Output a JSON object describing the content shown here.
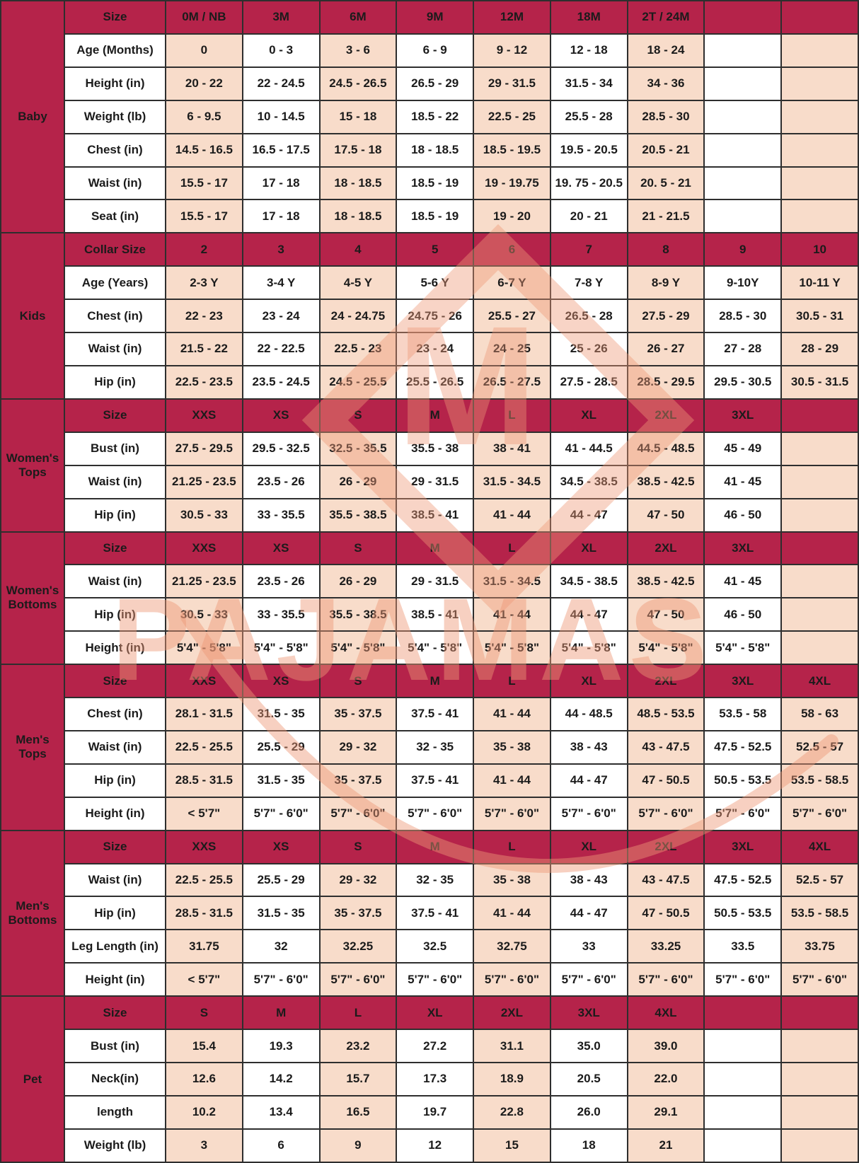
{
  "colors": {
    "header_bg": "#b5234a",
    "pink_cell": "#f8dcca",
    "white_cell": "#ffffff",
    "border": "#2e2e2e",
    "cell_text": "#1b1b1b",
    "header_text": "#f9edef",
    "watermark": "#ee9877"
  },
  "watermark": {
    "brand_text": "PAJAMAS",
    "monogram": "M"
  },
  "sections": [
    {
      "group": "Baby",
      "header_label": "Size",
      "columns": [
        "0M / NB",
        "3M",
        "6M",
        "9M",
        "12M",
        "18M",
        "2T / 24M",
        "",
        ""
      ],
      "rows": [
        {
          "label": "Age (Months)",
          "values": [
            "0",
            "0 - 3",
            "3 - 6",
            "6 - 9",
            "9 - 12",
            "12 - 18",
            "18 - 24",
            "",
            ""
          ]
        },
        {
          "label": "Height (in)",
          "values": [
            "20 - 22",
            "22 - 24.5",
            "24.5 - 26.5",
            "26.5 - 29",
            "29 - 31.5",
            "31.5 - 34",
            "34 - 36",
            "",
            ""
          ]
        },
        {
          "label": "Weight (lb)",
          "values": [
            "6 - 9.5",
            "10 - 14.5",
            "15 - 18",
            "18.5 - 22",
            "22.5 - 25",
            "25.5 - 28",
            "28.5 - 30",
            "",
            ""
          ]
        },
        {
          "label": "Chest (in)",
          "values": [
            "14.5 - 16.5",
            "16.5 - 17.5",
            "17.5 - 18",
            "18 - 18.5",
            "18.5 - 19.5",
            "19.5 - 20.5",
            "20.5 - 21",
            "",
            ""
          ]
        },
        {
          "label": "Waist (in)",
          "values": [
            "15.5 - 17",
            "17 - 18",
            "18 - 18.5",
            "18.5 - 19",
            "19 - 19.75",
            "19. 75 - 20.5",
            "20. 5 - 21",
            "",
            ""
          ]
        },
        {
          "label": "Seat (in)",
          "values": [
            "15.5 - 17",
            "17 - 18",
            "18 - 18.5",
            "18.5 - 19",
            "19 - 20",
            "20 - 21",
            "21 - 21.5",
            "",
            ""
          ]
        }
      ]
    },
    {
      "group": "Kids",
      "header_label": "Collar Size",
      "columns": [
        "2",
        "3",
        "4",
        "5",
        "6",
        "7",
        "8",
        "9",
        "10"
      ],
      "rows": [
        {
          "label": "Age (Years)",
          "values": [
            "2-3 Y",
            "3-4 Y",
            "4-5 Y",
            "5-6 Y",
            "6-7 Y",
            "7-8 Y",
            "8-9 Y",
            "9-10Y",
            "10-11 Y"
          ]
        },
        {
          "label": "Chest (in)",
          "values": [
            "22 - 23",
            "23 - 24",
            "24 - 24.75",
            "24.75 - 26",
            "25.5 - 27",
            "26.5 - 28",
            "27.5 - 29",
            "28.5 - 30",
            "30.5 - 31"
          ]
        },
        {
          "label": "Waist (in)",
          "values": [
            "21.5 - 22",
            "22 - 22.5",
            "22.5 - 23",
            "23 - 24",
            "24 - 25",
            "25 - 26",
            "26 - 27",
            "27 - 28",
            "28 - 29"
          ]
        },
        {
          "label": "Hip (in)",
          "values": [
            "22.5 - 23.5",
            "23.5 - 24.5",
            "24.5 - 25.5",
            "25.5 - 26.5",
            "26.5 - 27.5",
            "27.5 - 28.5",
            "28.5 - 29.5",
            "29.5 - 30.5",
            "30.5 - 31.5"
          ]
        }
      ]
    },
    {
      "group": "Women's Tops",
      "header_label": "Size",
      "columns": [
        "XXS",
        "XS",
        "S",
        "M",
        "L",
        "XL",
        "2XL",
        "3XL",
        ""
      ],
      "rows": [
        {
          "label": "Bust (in)",
          "values": [
            "27.5 - 29.5",
            "29.5 - 32.5",
            "32.5 - 35.5",
            "35.5 - 38",
            "38 - 41",
            "41 - 44.5",
            "44.5 - 48.5",
            "45 - 49",
            ""
          ]
        },
        {
          "label": "Waist (in)",
          "values": [
            "21.25 - 23.5",
            "23.5 - 26",
            "26 - 29",
            "29 - 31.5",
            "31.5 - 34.5",
            "34.5 - 38.5",
            "38.5 - 42.5",
            "41 - 45",
            ""
          ]
        },
        {
          "label": "Hip (in)",
          "values": [
            "30.5 - 33",
            "33 - 35.5",
            "35.5 - 38.5",
            "38.5 - 41",
            "41 - 44",
            "44 - 47",
            "47 - 50",
            "46 - 50",
            ""
          ]
        }
      ]
    },
    {
      "group": "Women's Bottoms",
      "header_label": "Size",
      "columns": [
        "XXS",
        "XS",
        "S",
        "M",
        "L",
        "XL",
        "2XL",
        "3XL",
        ""
      ],
      "rows": [
        {
          "label": "Waist (in)",
          "values": [
            "21.25 - 23.5",
            "23.5 - 26",
            "26 - 29",
            "29 - 31.5",
            "31.5 - 34.5",
            "34.5 - 38.5",
            "38.5 - 42.5",
            "41 - 45",
            ""
          ]
        },
        {
          "label": "Hip (in)",
          "values": [
            "30.5 - 33",
            "33 - 35.5",
            "35.5 - 38.5",
            "38.5 - 41",
            "41 - 44",
            "44 - 47",
            "47 - 50",
            "46 - 50",
            ""
          ]
        },
        {
          "label": "Height (in)",
          "values": [
            "5'4\" - 5'8\"",
            "5'4\" - 5'8\"",
            "5'4\" - 5'8\"",
            "5'4\" - 5'8\"",
            "5'4\" - 5'8\"",
            "5'4\" - 5'8\"",
            "5'4\" - 5'8\"",
            "5'4\" - 5'8\"",
            ""
          ]
        }
      ]
    },
    {
      "group": "Men's Tops",
      "header_label": "Size",
      "columns": [
        "XXS",
        "XS",
        "S",
        "M",
        "L",
        "XL",
        "2XL",
        "3XL",
        "4XL"
      ],
      "rows": [
        {
          "label": "Chest (in)",
          "values": [
            "28.1 - 31.5",
            "31.5 - 35",
            "35 - 37.5",
            "37.5 - 41",
            "41 - 44",
            "44 - 48.5",
            "48.5 - 53.5",
            "53.5 - 58",
            "58 - 63"
          ]
        },
        {
          "label": "Waist (in)",
          "values": [
            "22.5 - 25.5",
            "25.5 - 29",
            "29 - 32",
            "32 - 35",
            "35 - 38",
            "38 - 43",
            "43 - 47.5",
            "47.5 - 52.5",
            "52.5 - 57"
          ]
        },
        {
          "label": "Hip (in)",
          "values": [
            "28.5 - 31.5",
            "31.5 - 35",
            "35 - 37.5",
            "37.5 - 41",
            "41 - 44",
            "44 - 47",
            "47 - 50.5",
            "50.5 - 53.5",
            "53.5 - 58.5"
          ]
        },
        {
          "label": "Height (in)",
          "values": [
            "< 5'7\"",
            "5'7\" - 6'0\"",
            "5'7\" - 6'0\"",
            "5'7\" - 6'0\"",
            "5'7\" - 6'0\"",
            "5'7\" - 6'0\"",
            "5'7\" - 6'0\"",
            "5'7\" - 6'0\"",
            "5'7\" - 6'0\""
          ]
        }
      ]
    },
    {
      "group": "Men's Bottoms",
      "header_label": "Size",
      "columns": [
        "XXS",
        "XS",
        "S",
        "M",
        "L",
        "XL",
        "2XL",
        "3XL",
        "4XL"
      ],
      "rows": [
        {
          "label": "Waist (in)",
          "values": [
            "22.5 - 25.5",
            "25.5 - 29",
            "29 - 32",
            "32 - 35",
            "35 - 38",
            "38 - 43",
            "43 - 47.5",
            "47.5 - 52.5",
            "52.5 - 57"
          ]
        },
        {
          "label": "Hip (in)",
          "values": [
            "28.5 - 31.5",
            "31.5 - 35",
            "35 - 37.5",
            "37.5 - 41",
            "41 - 44",
            "44 - 47",
            "47 - 50.5",
            "50.5 - 53.5",
            "53.5 - 58.5"
          ]
        },
        {
          "label": "Leg Length (in)",
          "values": [
            "31.75",
            "32",
            "32.25",
            "32.5",
            "32.75",
            "33",
            "33.25",
            "33.5",
            "33.75"
          ]
        },
        {
          "label": "Height (in)",
          "values": [
            "< 5'7\"",
            "5'7\" - 6'0\"",
            "5'7\" - 6'0\"",
            "5'7\" - 6'0\"",
            "5'7\" - 6'0\"",
            "5'7\" - 6'0\"",
            "5'7\" - 6'0\"",
            "5'7\" - 6'0\"",
            "5'7\" - 6'0\""
          ]
        }
      ]
    },
    {
      "group": "Pet",
      "header_label": "Size",
      "columns": [
        "S",
        "M",
        "L",
        "XL",
        "2XL",
        "3XL",
        "4XL",
        "",
        ""
      ],
      "rows": [
        {
          "label": "Bust (in)",
          "values": [
            "15.4",
            "19.3",
            "23.2",
            "27.2",
            "31.1",
            "35.0",
            "39.0",
            "",
            ""
          ]
        },
        {
          "label": "Neck(in)",
          "values": [
            "12.6",
            "14.2",
            "15.7",
            "17.3",
            "18.9",
            "20.5",
            "22.0",
            "",
            ""
          ]
        },
        {
          "label": "length",
          "values": [
            "10.2",
            "13.4",
            "16.5",
            "19.7",
            "22.8",
            "26.0",
            "29.1",
            "",
            ""
          ]
        },
        {
          "label": "Weight (lb)",
          "values": [
            "3",
            "6",
            "9",
            "12",
            "15",
            "18",
            "21",
            "",
            ""
          ]
        }
      ]
    }
  ]
}
